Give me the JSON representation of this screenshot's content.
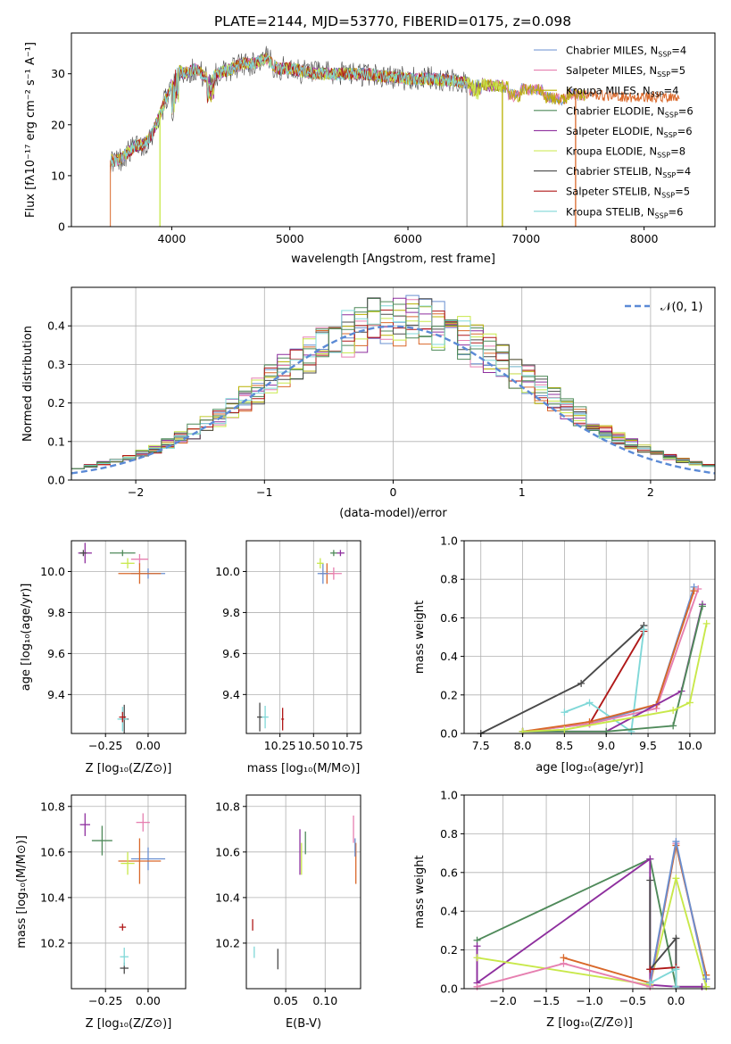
{
  "title": "PLATE=2144, MJD=53770, FIBERID=0175, z=0.098",
  "colors": [
    "#6a8fd0",
    "#e67fb0",
    "#b8b000",
    "#4f8a5a",
    "#8e2f9e",
    "#c8e84a",
    "#4a4a4a",
    "#b01818",
    "#80d8d8"
  ],
  "chart_data": [
    {
      "type": "line",
      "panel": "spectrum",
      "xlabel": "wavelength [Angstrom, rest frame]",
      "ylabel": "Flux [fλ10⁻¹⁷ erg cm⁻² s⁻¹ A⁻¹]",
      "xlim": [
        3150,
        8600
      ],
      "ylim": [
        0,
        38
      ],
      "xticks": [
        4000,
        5000,
        6000,
        7000,
        8000
      ],
      "yticks": [
        0,
        10,
        20,
        30
      ],
      "grid": false,
      "legend": "top-right",
      "legend_entries": [
        {
          "name": "Chabrier MILES",
          "nssp": "4",
          "color": "#6a8fd0"
        },
        {
          "name": "Salpeter MILES",
          "nssp": "5",
          "color": "#e67fb0"
        },
        {
          "name": "Kroupa MILES",
          "nssp": "4",
          "color": "#b8b000"
        },
        {
          "name": "Chabrier ELODIE",
          "nssp": "6",
          "color": "#4f8a5a"
        },
        {
          "name": "Salpeter ELODIE",
          "nssp": "6",
          "color": "#8e2f9e"
        },
        {
          "name": "Kroupa ELODIE",
          "nssp": "8",
          "color": "#c8e84a"
        },
        {
          "name": "Chabrier STELIB",
          "nssp": "4",
          "color": "#4a4a4a"
        },
        {
          "name": "Salpeter STELIB",
          "nssp": "5",
          "color": "#b01818"
        },
        {
          "name": "Kroupa STELIB",
          "nssp": "6",
          "color": "#80d8d8"
        }
      ],
      "continuum": [
        [
          3480,
          13
        ],
        [
          3550,
          13
        ],
        [
          3600,
          14
        ],
        [
          3650,
          15
        ],
        [
          3700,
          16
        ],
        [
          3750,
          16
        ],
        [
          3800,
          17
        ],
        [
          3850,
          19
        ],
        [
          3900,
          22
        ],
        [
          3950,
          25
        ],
        [
          4000,
          28
        ],
        [
          4050,
          31
        ],
        [
          4100,
          30
        ],
        [
          4200,
          31
        ],
        [
          4300,
          29
        ],
        [
          4400,
          30
        ],
        [
          4500,
          31
        ],
        [
          4600,
          32
        ],
        [
          4700,
          32
        ],
        [
          4800,
          33
        ],
        [
          4900,
          31
        ],
        [
          5000,
          31
        ],
        [
          5200,
          30
        ],
        [
          5400,
          30
        ],
        [
          5600,
          30
        ],
        [
          5800,
          29.5
        ],
        [
          6000,
          29
        ],
        [
          6200,
          29
        ],
        [
          6400,
          28.5
        ],
        [
          6600,
          28
        ],
        [
          6800,
          27.5
        ],
        [
          7000,
          27
        ],
        [
          7200,
          26.5
        ],
        [
          7400,
          26
        ],
        [
          7800,
          25.5
        ],
        [
          8300,
          25.5
        ]
      ],
      "stelib_end": 6500,
      "elodie_end": 6800,
      "spikes": [
        {
          "x": 3900,
          "color": "#c8e84a"
        },
        {
          "x": 6500,
          "color": "#aaaaaa"
        },
        {
          "x": 6800,
          "color": "#b8b000"
        },
        {
          "x": 7420,
          "color": "#d9682a"
        }
      ]
    },
    {
      "type": "histogram",
      "panel": "residuals",
      "xlabel": "(data-model)/error",
      "ylabel": "Normed distribution",
      "xlim": [
        -2.5,
        2.5
      ],
      "ylim": [
        0,
        0.5
      ],
      "xticks": [
        -2,
        -1,
        0,
        1,
        2
      ],
      "yticks": [
        0.0,
        0.1,
        0.2,
        0.3,
        0.4
      ],
      "grid": true,
      "legend": "top-right",
      "reference": {
        "label": "𝒩(0, 1)",
        "mean": 0,
        "sigma": 1,
        "color": "#5b8ad6"
      },
      "bin_width": 0.1
    },
    {
      "type": "scatter",
      "panel": "age-vs-Z",
      "xlabel": "Z [log₁₀(Z/Z⊙)]",
      "ylabel": "age  [log₁₀(age/yr)]",
      "xlim": [
        -0.45,
        0.22
      ],
      "ylim": [
        9.21,
        10.15
      ],
      "xticks": [
        -0.25,
        0.0
      ],
      "yticks": [
        9.4,
        9.6,
        9.8,
        10.0
      ],
      "grid": true,
      "points": [
        {
          "x": 0.0,
          "y": 9.99,
          "xerr": 0.2,
          "yerr": 0.05,
          "color": "#6a8fd0"
        },
        {
          "x": -0.05,
          "y": 10.06,
          "xerr": 0.1,
          "yerr": 0.05,
          "color": "#e67fb0"
        },
        {
          "x": -0.05,
          "y": 9.99,
          "xerr": 0.25,
          "yerr": 0.1,
          "color": "#d9682a"
        },
        {
          "x": -0.15,
          "y": 10.09,
          "xerr": 0.15,
          "yerr": 0.03,
          "color": "#4f8a5a"
        },
        {
          "x": -0.37,
          "y": 10.09,
          "xerr": 0.08,
          "yerr": 0.1,
          "color": "#8e2f9e"
        },
        {
          "x": -0.12,
          "y": 10.04,
          "xerr": 0.08,
          "yerr": 0.05,
          "color": "#c8e84a"
        },
        {
          "x": -0.38,
          "y": 10.09,
          "xerr": 0.04,
          "yerr": 0.03,
          "color": "#4a4a4a"
        },
        {
          "x": -0.14,
          "y": 9.28,
          "xerr": 0.05,
          "yerr": 0.14,
          "color": "#4a4a4a"
        },
        {
          "x": -0.15,
          "y": 9.28,
          "xerr": 0.06,
          "yerr": 0.12,
          "color": "#80d8d8"
        },
        {
          "x": -0.15,
          "y": 9.29,
          "xerr": 0.04,
          "yerr": 0.05,
          "color": "#b01818"
        }
      ]
    },
    {
      "type": "scatter",
      "panel": "age-vs-mass",
      "xlabel": "mass [log₁₀(M/M⊙)]",
      "ylabel": "",
      "xlim": [
        10.0,
        10.85
      ],
      "ylim": [
        9.21,
        10.15
      ],
      "xticks": [
        10.25,
        10.5,
        10.75
      ],
      "yticks": [
        9.4,
        9.6,
        9.8,
        10.0
      ],
      "grid": true,
      "points": [
        {
          "x": 10.6,
          "y": 9.99,
          "xerr": 0.1,
          "yerr": 0.1,
          "color": "#d9682a"
        },
        {
          "x": 10.65,
          "y": 9.99,
          "xerr": 0.12,
          "yerr": 0.06,
          "color": "#e67fb0"
        },
        {
          "x": 10.57,
          "y": 9.99,
          "xerr": 0.08,
          "yerr": 0.1,
          "color": "#6a8fd0"
        },
        {
          "x": 10.7,
          "y": 10.09,
          "xerr": 0.06,
          "yerr": 0.03,
          "color": "#8e2f9e"
        },
        {
          "x": 10.65,
          "y": 10.09,
          "xerr": 0.05,
          "yerr": 0.03,
          "color": "#4f8a5a"
        },
        {
          "x": 10.55,
          "y": 10.04,
          "xerr": 0.05,
          "yerr": 0.05,
          "color": "#c8e84a"
        },
        {
          "x": 10.1,
          "y": 9.29,
          "xerr": 0.04,
          "yerr": 0.14,
          "color": "#4a4a4a"
        },
        {
          "x": 10.14,
          "y": 9.29,
          "xerr": 0.05,
          "yerr": 0.11,
          "color": "#80d8d8"
        },
        {
          "x": 10.27,
          "y": 9.28,
          "xerr": 0.02,
          "yerr": 0.11,
          "color": "#b01818"
        }
      ]
    },
    {
      "type": "line",
      "panel": "weight-vs-age",
      "xlabel": "age  [log₁₀(age/yr)]",
      "ylabel": "mass weight",
      "xlim": [
        7.3,
        10.3
      ],
      "ylim": [
        0,
        1.0
      ],
      "xticks": [
        7.5,
        8.0,
        8.5,
        9.0,
        9.5,
        10.0
      ],
      "yticks": [
        0.0,
        0.2,
        0.4,
        0.6,
        0.8,
        1.0
      ],
      "grid": true,
      "series": [
        {
          "color": "#4a4a4a",
          "x": [
            7.5,
            8.7,
            9.45
          ],
          "y": [
            0.0,
            0.26,
            0.56
          ]
        },
        {
          "color": "#b01818",
          "x": [
            8.8,
            9.45
          ],
          "y": [
            0.05,
            0.53
          ]
        },
        {
          "color": "#80d8d8",
          "x": [
            8.5,
            8.8,
            9.3,
            9.45
          ],
          "y": [
            0.11,
            0.16,
            0.01,
            0.54
          ]
        },
        {
          "color": "#6a8fd0",
          "x": [
            8.0,
            8.8,
            9.6,
            10.05
          ],
          "y": [
            0.01,
            0.05,
            0.15,
            0.76
          ]
        },
        {
          "color": "#e67fb0",
          "x": [
            8.0,
            8.8,
            9.6,
            10.1
          ],
          "y": [
            0.01,
            0.05,
            0.13,
            0.75
          ]
        },
        {
          "color": "#d9682a",
          "x": [
            8.0,
            8.8,
            9.6,
            10.05
          ],
          "y": [
            0.01,
            0.06,
            0.15,
            0.74
          ]
        },
        {
          "color": "#8e2f9e",
          "x": [
            8.0,
            9.0,
            9.9,
            10.15
          ],
          "y": [
            0.01,
            0.01,
            0.22,
            0.67
          ]
        },
        {
          "color": "#4f8a5a",
          "x": [
            8.0,
            9.0,
            9.8,
            10.15
          ],
          "y": [
            0.01,
            0.01,
            0.04,
            0.66
          ]
        },
        {
          "color": "#c8e84a",
          "x": [
            8.0,
            8.5,
            9.8,
            10.0,
            10.2
          ],
          "y": [
            0.01,
            0.02,
            0.12,
            0.16,
            0.57
          ]
        }
      ]
    },
    {
      "type": "scatter",
      "panel": "mass-vs-Z",
      "xlabel": "Z [log₁₀(Z/Z⊙)]",
      "ylabel": "mass [log₁₀(M/M⊙)]",
      "xlim": [
        -0.45,
        0.22
      ],
      "ylim": [
        10.0,
        10.85
      ],
      "xticks": [
        -0.25,
        0.0
      ],
      "yticks": [
        10.2,
        10.4,
        10.6,
        10.8
      ],
      "grid": true,
      "points": [
        {
          "x": 0.0,
          "y": 10.57,
          "xerr": 0.2,
          "yerr": 0.1,
          "color": "#6a8fd0"
        },
        {
          "x": -0.03,
          "y": 10.73,
          "xerr": 0.08,
          "yerr": 0.08,
          "color": "#e67fb0"
        },
        {
          "x": -0.05,
          "y": 10.56,
          "xerr": 0.25,
          "yerr": 0.2,
          "color": "#d9682a"
        },
        {
          "x": -0.27,
          "y": 10.65,
          "xerr": 0.12,
          "yerr": 0.13,
          "color": "#4f8a5a"
        },
        {
          "x": -0.37,
          "y": 10.72,
          "xerr": 0.06,
          "yerr": 0.1,
          "color": "#8e2f9e"
        },
        {
          "x": -0.12,
          "y": 10.55,
          "xerr": 0.08,
          "yerr": 0.1,
          "color": "#c8e84a"
        },
        {
          "x": -0.14,
          "y": 10.09,
          "xerr": 0.05,
          "yerr": 0.05,
          "color": "#4a4a4a"
        },
        {
          "x": -0.14,
          "y": 10.14,
          "xerr": 0.05,
          "yerr": 0.08,
          "color": "#80d8d8"
        },
        {
          "x": -0.15,
          "y": 10.27,
          "xerr": 0.04,
          "yerr": 0.03,
          "color": "#b01818"
        }
      ]
    },
    {
      "type": "scatter",
      "panel": "mass-vs-EBV",
      "xlabel": "E(B-V)",
      "ylabel": "",
      "xlim": [
        0.0,
        0.145
      ],
      "ylim": [
        10.0,
        10.85
      ],
      "xticks": [
        0.05,
        0.1
      ],
      "yticks": [
        10.2,
        10.4,
        10.6,
        10.8
      ],
      "grid": true,
      "points": [
        {
          "x": 0.068,
          "y": 10.6,
          "yerr": 0.2,
          "color": "#8e2f9e"
        },
        {
          "x": 0.07,
          "y": 10.57,
          "yerr": 0.14,
          "color": "#c8e84a"
        },
        {
          "x": 0.075,
          "y": 10.64,
          "yerr": 0.1,
          "color": "#4f8a5a"
        },
        {
          "x": 0.136,
          "y": 10.7,
          "yerr": 0.12,
          "color": "#e67fb0"
        },
        {
          "x": 0.139,
          "y": 10.55,
          "yerr": 0.18,
          "color": "#d9682a"
        },
        {
          "x": 0.138,
          "y": 10.62,
          "yerr": 0.08,
          "color": "#6a8fd0"
        },
        {
          "x": 0.008,
          "y": 10.28,
          "yerr": 0.05,
          "color": "#b01818"
        },
        {
          "x": 0.01,
          "y": 10.16,
          "yerr": 0.05,
          "color": "#80d8d8"
        },
        {
          "x": 0.04,
          "y": 10.13,
          "yerr": 0.09,
          "color": "#4a4a4a"
        }
      ]
    },
    {
      "type": "line",
      "panel": "weight-vs-Z",
      "xlabel": "Z [log₁₀(Z/Z⊙)]",
      "ylabel": "mass weight",
      "xlim": [
        -2.45,
        0.45
      ],
      "ylim": [
        0,
        1.0
      ],
      "xticks": [
        -2.0,
        -1.5,
        -1.0,
        -0.5,
        0.0
      ],
      "yticks": [
        0.0,
        0.2,
        0.4,
        0.6,
        0.8,
        1.0
      ],
      "grid": true,
      "series": [
        {
          "color": "#4f8a5a",
          "x": [
            -2.3,
            -0.3,
            0.0,
            0.35
          ],
          "y": [
            0.25,
            0.67,
            0.01,
            0.01
          ]
        },
        {
          "color": "#8e2f9e",
          "x": [
            -2.3,
            -2.3,
            -0.3,
            -0.3,
            0.0,
            0.3
          ],
          "y": [
            0.22,
            0.03,
            0.67,
            0.02,
            0.01,
            0.01
          ]
        },
        {
          "color": "#c8e84a",
          "x": [
            -2.3,
            -0.3,
            0.0,
            0.35
          ],
          "y": [
            0.16,
            0.02,
            0.57,
            0.01
          ]
        },
        {
          "color": "#e67fb0",
          "x": [
            -2.3,
            -1.3,
            -0.3,
            0.0,
            0.35
          ],
          "y": [
            0.01,
            0.13,
            0.01,
            0.75,
            0.05
          ]
        },
        {
          "color": "#d9682a",
          "x": [
            -1.3,
            -0.3,
            0.0,
            0.35
          ],
          "y": [
            0.16,
            0.03,
            0.74,
            0.07
          ]
        },
        {
          "color": "#6a8fd0",
          "x": [
            -0.3,
            0.0,
            0.35
          ],
          "y": [
            0.03,
            0.76,
            0.05
          ]
        },
        {
          "color": "#4a4a4a",
          "x": [
            -0.3,
            -0.3,
            0.0,
            0.0
          ],
          "y": [
            0.56,
            0.1,
            0.26,
            0.01
          ]
        },
        {
          "color": "#b01818",
          "x": [
            -0.3,
            0.0
          ],
          "y": [
            0.1,
            0.11
          ]
        },
        {
          "color": "#80d8d8",
          "x": [
            -0.3,
            0.0,
            0.0
          ],
          "y": [
            0.03,
            0.1,
            0.01
          ]
        }
      ]
    }
  ]
}
